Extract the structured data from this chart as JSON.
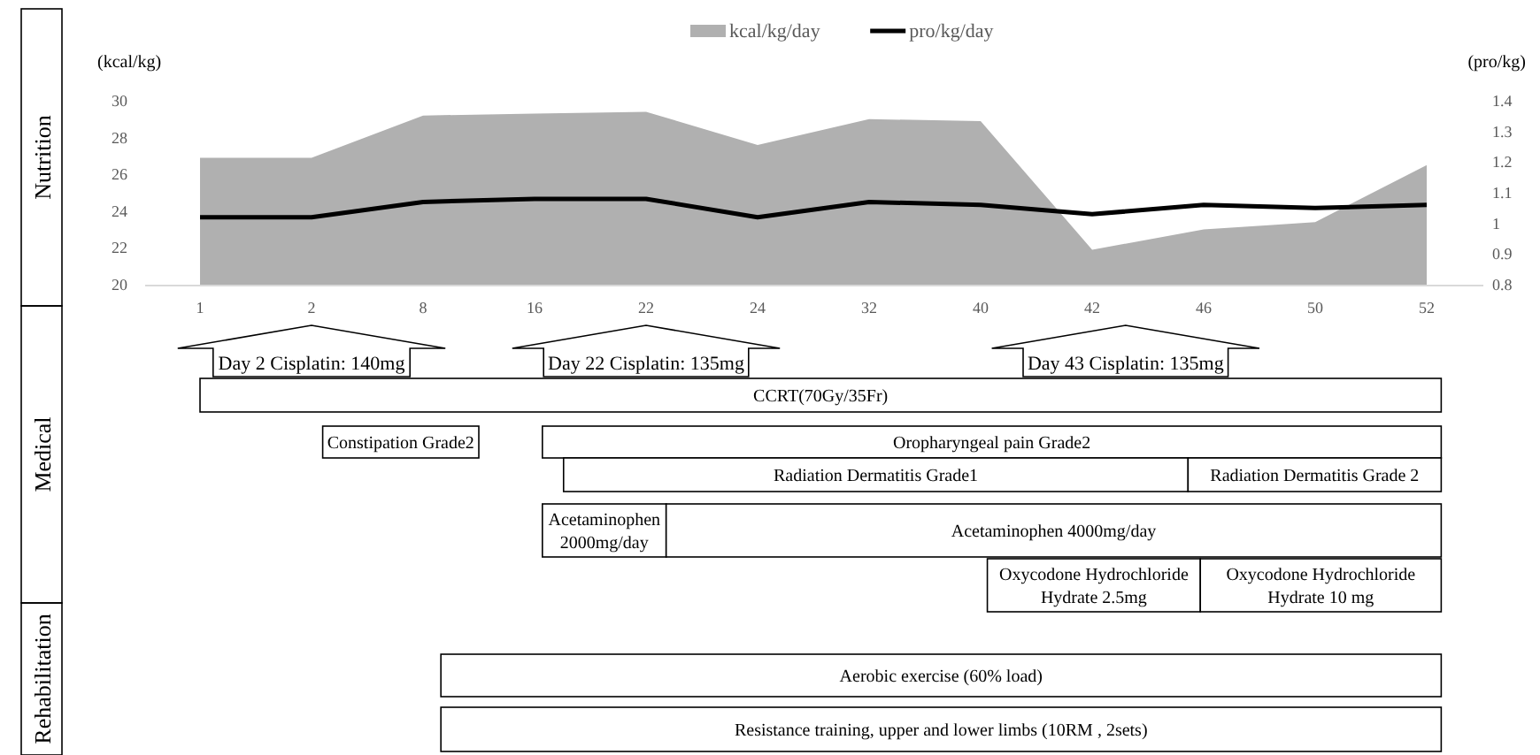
{
  "chart_data": {
    "type": "area",
    "ylabel": "(kcal/kg)",
    "y2label": "(pro/kg)",
    "categories": [
      "1",
      "2",
      "8",
      "16",
      "22",
      "24",
      "32",
      "40",
      "42",
      "46",
      "50",
      "52"
    ],
    "series": [
      {
        "name": "kcal/kg/day",
        "color": "#b0b0b0",
        "values": [
          26.9,
          26.9,
          29.2,
          29.3,
          29.4,
          27.6,
          29.0,
          28.9,
          21.9,
          23.0,
          23.4,
          26.5
        ]
      },
      {
        "name": "pro/kg/day",
        "type": "line",
        "axis": "y2",
        "color": "#000000",
        "values": [
          1.02,
          1.02,
          1.07,
          1.08,
          1.08,
          1.02,
          1.07,
          1.06,
          1.03,
          1.06,
          1.05,
          1.06
        ]
      }
    ],
    "ylim": [
      20,
      30
    ],
    "yticks": [
      20,
      22,
      24,
      26,
      28,
      30
    ],
    "y2lim": [
      0.8,
      1.4
    ],
    "y2ticks": [
      {
        "value": 0.8,
        "label": "0.8"
      },
      {
        "value": 0.9,
        "label": "0.9"
      },
      {
        "value": 1,
        "label": "1"
      },
      {
        "value": 1.1,
        "label": "1.1"
      },
      {
        "value": 1.2,
        "label": "1.2"
      },
      {
        "value": 1.3,
        "label": "1.3"
      },
      {
        "value": 1.4,
        "label": "1.4"
      }
    ],
    "legend": "top",
    "grid": false,
    "annotations": [
      "Nutrition",
      "Medical",
      "Rehabilitation",
      "Day 2 Cisplatin: 140mg",
      "Day 22 Cisplatin: 135mg",
      "Day 43 Cisplatin: 135mg",
      "CCRT(70Gy/35Fr)",
      "Constipation Grade2",
      "Oropharyngeal pain Grade2",
      "Radiation Dermatitis Grade1",
      "Radiation Dermatitis Grade 2",
      "Acetaminophen 2000mg/day",
      "Acetaminophen 4000mg/day",
      "Oxycodone Hydrochloride Hydrate 2.5mg",
      "Oxycodone Hydrochloride Hydrate 10 mg",
      "Aerobic exercise (60% load)",
      "Resistance training, upper and lower limbs (10RM , 2sets)"
    ]
  }
}
